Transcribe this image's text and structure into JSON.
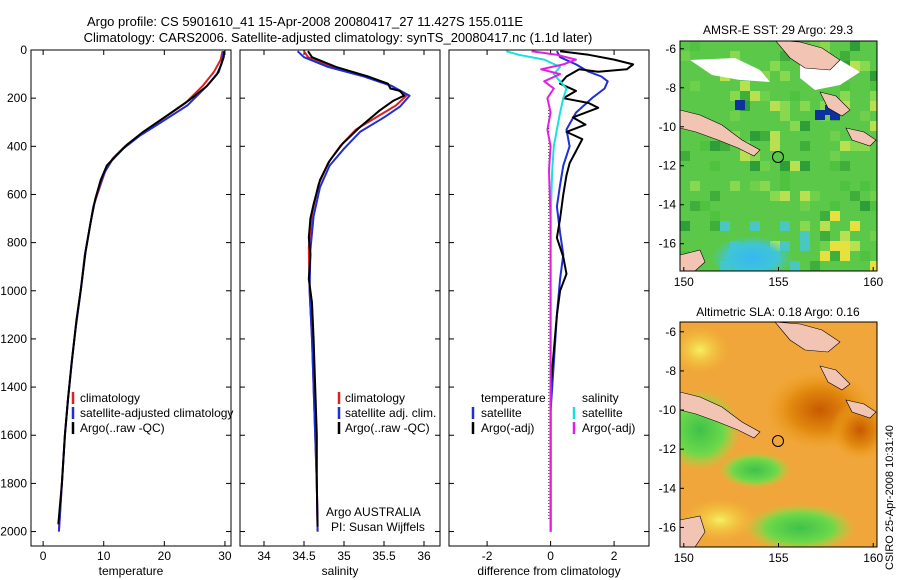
{
  "header": {
    "line1": "Argo profile: CS 5901610_41 15-Apr-2008 20080417_27 11.427S 155.011E",
    "line2": "Climatology: CARS2006. Satellite-adjusted climatology: synTS_20080417.nc (1.1d later)"
  },
  "colors": {
    "climatology": "#e02020",
    "satellite": "#1f2fd6",
    "argo": "#000000",
    "sal_satellite": "#19e0e0",
    "sal_argo": "#e020e0"
  },
  "chart_data": [
    {
      "type": "line",
      "xlabel": "temperature",
      "ylabel": "",
      "xlim": [
        -2,
        31
      ],
      "ylim": [
        2060,
        0
      ],
      "y_inverted": true,
      "xticks": [
        0,
        10,
        20,
        30
      ],
      "yticks": [
        0,
        200,
        400,
        600,
        800,
        1000,
        1200,
        1400,
        1600,
        1800,
        2000
      ],
      "legend": {
        "placement": "bottom-right",
        "entries": [
          "climatology",
          "satellite-adjusted climatology",
          "Argo(..raw -QC)"
        ]
      },
      "series": [
        {
          "name": "climatology",
          "color": "#e02020",
          "points": [
            [
              29.6,
              5
            ],
            [
              29.3,
              40
            ],
            [
              28.2,
              90
            ],
            [
              26.3,
              150
            ],
            [
              23.5,
              220
            ],
            [
              19.5,
              290
            ],
            [
              16.2,
              350
            ],
            [
              13.5,
              400
            ],
            [
              11.5,
              450
            ],
            [
              10.3,
              500
            ],
            [
              9.2,
              580
            ],
            [
              8.3,
              650
            ],
            [
              7.6,
              750
            ],
            [
              6.9,
              850
            ],
            [
              6.2,
              1000
            ],
            [
              5.4,
              1150
            ],
            [
              4.7,
              1300
            ],
            [
              4.1,
              1450
            ],
            [
              3.6,
              1600
            ],
            [
              3.1,
              1800
            ],
            [
              2.6,
              2000
            ]
          ]
        },
        {
          "name": "satellite-adjusted climatology",
          "color": "#1f2fd6",
          "points": [
            [
              29.8,
              5
            ],
            [
              29.6,
              40
            ],
            [
              29.0,
              90
            ],
            [
              27.0,
              150
            ],
            [
              23.8,
              230
            ],
            [
              19.5,
              300
            ],
            [
              16.0,
              355
            ],
            [
              13.2,
              410
            ],
            [
              11.3,
              460
            ],
            [
              10.1,
              510
            ],
            [
              9.1,
              580
            ],
            [
              8.3,
              650
            ],
            [
              7.6,
              750
            ],
            [
              6.9,
              850
            ],
            [
              6.2,
              1000
            ],
            [
              5.4,
              1150
            ],
            [
              4.7,
              1300
            ],
            [
              4.1,
              1450
            ],
            [
              3.6,
              1600
            ],
            [
              3.1,
              1800
            ],
            [
              2.6,
              2000
            ]
          ]
        },
        {
          "name": "Argo(..raw -QC)",
          "color": "#000000",
          "points": [
            [
              29.9,
              5
            ],
            [
              29.8,
              30
            ],
            [
              29.4,
              60
            ],
            [
              28.7,
              100
            ],
            [
              27.0,
              150
            ],
            [
              24.0,
              210
            ],
            [
              20.0,
              280
            ],
            [
              16.5,
              340
            ],
            [
              14.0,
              390
            ],
            [
              12.0,
              440
            ],
            [
              10.5,
              480
            ],
            [
              9.5,
              540
            ],
            [
              8.6,
              620
            ],
            [
              7.8,
              720
            ],
            [
              7.0,
              840
            ],
            [
              6.3,
              980
            ],
            [
              5.5,
              1120
            ],
            [
              4.8,
              1280
            ],
            [
              4.1,
              1450
            ],
            [
              3.6,
              1600
            ],
            [
              3.1,
              1800
            ],
            [
              2.5,
              1970
            ]
          ]
        }
      ]
    },
    {
      "type": "line",
      "xlabel": "salinity",
      "ylabel": "",
      "xlim": [
        33.7,
        36.2
      ],
      "ylim": [
        2060,
        0
      ],
      "y_inverted": true,
      "xticks": [
        34,
        34.5,
        35,
        35.5,
        36
      ],
      "xtick_labels": [
        "34",
        "34.5",
        "35",
        "35.5",
        "36"
      ],
      "legend": {
        "placement": "bottom-right",
        "entries": [
          "climatology",
          "satellite adj. clim.",
          "Argo(..raw -QC)"
        ]
      },
      "annotations": [
        "Argo AUSTRALIA",
        "PI: Susan Wijffels"
      ],
      "series": [
        {
          "name": "climatology",
          "color": "#e02020",
          "points": [
            [
              34.5,
              5
            ],
            [
              34.55,
              30
            ],
            [
              34.85,
              70
            ],
            [
              35.3,
              110
            ],
            [
              35.6,
              150
            ],
            [
              35.78,
              190
            ],
            [
              35.65,
              230
            ],
            [
              35.45,
              270
            ],
            [
              35.15,
              330
            ],
            [
              34.95,
              400
            ],
            [
              34.8,
              470
            ],
            [
              34.68,
              560
            ],
            [
              34.6,
              680
            ],
            [
              34.56,
              820
            ],
            [
              34.57,
              1000
            ],
            [
              34.6,
              1200
            ],
            [
              34.62,
              1400
            ],
            [
              34.64,
              1600
            ],
            [
              34.66,
              1800
            ],
            [
              34.67,
              2000
            ]
          ]
        },
        {
          "name": "satellite adj. clim.",
          "color": "#1f2fd6",
          "points": [
            [
              34.42,
              5
            ],
            [
              34.5,
              30
            ],
            [
              34.8,
              70
            ],
            [
              35.25,
              110
            ],
            [
              35.6,
              150
            ],
            [
              35.82,
              190
            ],
            [
              35.7,
              235
            ],
            [
              35.5,
              280
            ],
            [
              35.2,
              340
            ],
            [
              35.0,
              410
            ],
            [
              34.82,
              480
            ],
            [
              34.7,
              570
            ],
            [
              34.62,
              690
            ],
            [
              34.58,
              830
            ],
            [
              34.57,
              1000
            ],
            [
              34.6,
              1200
            ],
            [
              34.62,
              1400
            ],
            [
              34.64,
              1600
            ],
            [
              34.66,
              1800
            ],
            [
              34.67,
              2000
            ]
          ]
        },
        {
          "name": "Argo(..raw -QC)",
          "color": "#000000",
          "points": [
            [
              34.55,
              5
            ],
            [
              34.6,
              30
            ],
            [
              34.9,
              70
            ],
            [
              35.3,
              110
            ],
            [
              35.55,
              140
            ],
            [
              35.58,
              160
            ],
            [
              35.7,
              170
            ],
            [
              35.75,
              190
            ],
            [
              35.62,
              210
            ],
            [
              35.45,
              250
            ],
            [
              35.2,
              320
            ],
            [
              34.98,
              390
            ],
            [
              34.82,
              460
            ],
            [
              34.7,
              540
            ],
            [
              34.62,
              640
            ],
            [
              34.58,
              700
            ],
            [
              34.56,
              780
            ],
            [
              34.58,
              850
            ],
            [
              34.56,
              950
            ],
            [
              34.6,
              1050
            ],
            [
              34.62,
              1200
            ],
            [
              34.64,
              1400
            ],
            [
              34.66,
              1600
            ],
            [
              34.66,
              1800
            ],
            [
              34.67,
              1980
            ]
          ]
        }
      ]
    },
    {
      "type": "line",
      "xlabel": "difference from climatology",
      "ylabel": "",
      "xlim": [
        -3.2,
        3.1
      ],
      "ylim": [
        2060,
        0
      ],
      "y_inverted": true,
      "xticks": [
        -2,
        0,
        2
      ],
      "legend": {
        "placement": "bottom-right",
        "columns": [
          {
            "title": "temperature",
            "entries": [
              "satellite",
              "Argo(-adj)"
            ]
          },
          {
            "title": "salinity",
            "entries": [
              "satellite",
              "Argo(-adj)"
            ]
          }
        ]
      },
      "series": [
        {
          "name": "temperature satellite",
          "color": "#1f2fd6",
          "points": [
            [
              0.2,
              5
            ],
            [
              0.3,
              30
            ],
            [
              0.8,
              60
            ],
            [
              1.2,
              90
            ],
            [
              1.6,
              110
            ],
            [
              1.8,
              130
            ],
            [
              1.7,
              160
            ],
            [
              1.3,
              200
            ],
            [
              0.8,
              260
            ],
            [
              0.5,
              330
            ],
            [
              0.6,
              400
            ],
            [
              0.4,
              480
            ],
            [
              0.3,
              560
            ],
            [
              0.2,
              650
            ],
            [
              0.3,
              760
            ],
            [
              0.4,
              850
            ],
            [
              0.3,
              950
            ],
            [
              0.2,
              1100
            ],
            [
              0.1,
              1300
            ],
            [
              0.0,
              1500
            ],
            [
              0.0,
              1800
            ],
            [
              0.0,
              2000
            ]
          ]
        },
        {
          "name": "temperature Argo(-adj)",
          "color": "#000000",
          "points": [
            [
              0.3,
              5
            ],
            [
              1.2,
              20
            ],
            [
              2.0,
              40
            ],
            [
              2.6,
              60
            ],
            [
              2.4,
              80
            ],
            [
              1.5,
              90
            ],
            [
              0.9,
              80
            ],
            [
              0.5,
              110
            ],
            [
              0.3,
              140
            ],
            [
              0.8,
              170
            ],
            [
              0.4,
              200
            ],
            [
              1.2,
              220
            ],
            [
              1.5,
              240
            ],
            [
              0.7,
              280
            ],
            [
              1.1,
              310
            ],
            [
              0.5,
              340
            ],
            [
              1.0,
              370
            ],
            [
              0.8,
              420
            ],
            [
              0.6,
              470
            ],
            [
              0.5,
              520
            ],
            [
              0.4,
              600
            ],
            [
              0.3,
              700
            ],
            [
              0.2,
              780
            ],
            [
              0.4,
              860
            ],
            [
              0.5,
              930
            ],
            [
              0.3,
              1000
            ],
            [
              0.2,
              1100
            ],
            [
              0.1,
              1250
            ],
            [
              0.0,
              1400
            ],
            [
              0.0,
              1700
            ],
            [
              0.0,
              2000
            ]
          ]
        },
        {
          "name": "salinity satellite",
          "color": "#19e0e0",
          "points": [
            [
              -1.4,
              5
            ],
            [
              -1.0,
              20
            ],
            [
              -0.2,
              40
            ],
            [
              0.3,
              70
            ],
            [
              0.1,
              100
            ],
            [
              0.3,
              130
            ],
            [
              0.5,
              160
            ],
            [
              0.4,
              200
            ],
            [
              0.3,
              260
            ],
            [
              0.2,
              330
            ],
            [
              0.1,
              400
            ],
            [
              0.05,
              500
            ],
            [
              0.0,
              700
            ],
            [
              0.0,
              1000
            ],
            [
              0.0,
              1400
            ],
            [
              0.0,
              2000
            ]
          ]
        },
        {
          "name": "salinity Argo(-adj)",
          "color": "#e020e0",
          "points": [
            [
              -0.6,
              5
            ],
            [
              0.2,
              20
            ],
            [
              0.8,
              40
            ],
            [
              0.4,
              60
            ],
            [
              -0.3,
              80
            ],
            [
              0.3,
              100
            ],
            [
              -0.2,
              130
            ],
            [
              0.1,
              160
            ],
            [
              -0.1,
              200
            ],
            [
              0.0,
              260
            ],
            [
              -0.1,
              330
            ],
            [
              0.0,
              400
            ],
            [
              -0.05,
              500
            ],
            [
              0.0,
              700
            ],
            [
              0.0,
              1000
            ],
            [
              0.0,
              1400
            ],
            [
              0.0,
              2000
            ]
          ]
        }
      ]
    },
    {
      "type": "heatmap",
      "title": "AMSR-E SST: 29 Argo: 29.3",
      "xlim": [
        149.8,
        160.2
      ],
      "ylim": [
        -17.4,
        -5.6
      ],
      "xticks": [
        150,
        155,
        160
      ],
      "yticks": [
        -6,
        -8,
        -10,
        -12,
        -14,
        -16
      ],
      "marker": {
        "lon": 155.0,
        "lat": -11.4
      },
      "palette": "green-dominant with yellow and cyan patches, white land and cloud gaps"
    },
    {
      "type": "heatmap",
      "title": "Altimetric SLA: 0.18 Argo: 0.16",
      "xlim": [
        149.8,
        160.2
      ],
      "ylim": [
        -17.0,
        -5.5
      ],
      "xticks": [
        150,
        155,
        160
      ],
      "yticks": [
        -6,
        -8,
        -10,
        -12,
        -14,
        -16
      ],
      "marker": {
        "lon": 155.0,
        "lat": -11.4
      },
      "palette": "orange/yellow with green patches",
      "side_label": "CSIRO 25-Apr-2008 10:31:40"
    }
  ]
}
